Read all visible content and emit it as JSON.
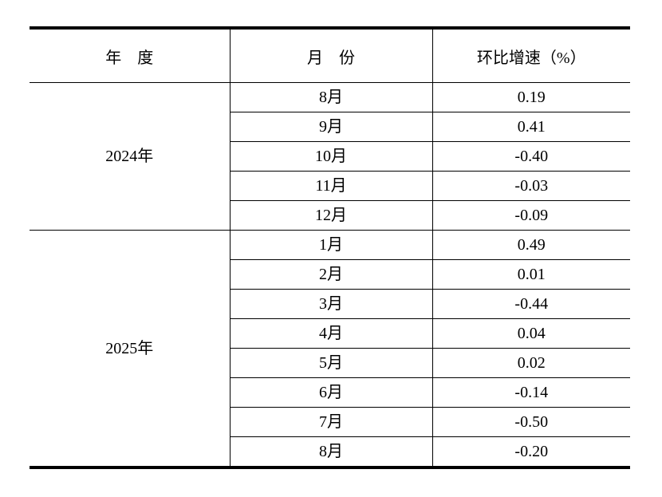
{
  "page": {
    "background_color": "#ffffff",
    "text_color": "#000000",
    "line_color": "#000000"
  },
  "table": {
    "headers": [
      "年　度",
      "月　份",
      "环比增速（%）"
    ],
    "groups": [
      {
        "year": "2024年",
        "rows": [
          {
            "month": "8月",
            "value": "0.19"
          },
          {
            "month": "9月",
            "value": "0.41"
          },
          {
            "month": "10月",
            "value": "-0.40"
          },
          {
            "month": "11月",
            "value": "-0.03"
          },
          {
            "month": "12月",
            "value": "-0.09"
          }
        ]
      },
      {
        "year": "2025年",
        "rows": [
          {
            "month": "1月",
            "value": "0.49"
          },
          {
            "month": "2月",
            "value": "0.01"
          },
          {
            "month": "3月",
            "value": "-0.44"
          },
          {
            "month": "4月",
            "value": "0.04"
          },
          {
            "month": "5月",
            "value": "0.02"
          },
          {
            "month": "6月",
            "value": "-0.14"
          },
          {
            "month": "7月",
            "value": "-0.50"
          },
          {
            "month": "8月",
            "value": "-0.20"
          }
        ]
      }
    ]
  },
  "chart_data": {
    "type": "table",
    "columns": [
      "年　度",
      "月　份",
      "环比增速（%）"
    ],
    "rows": [
      [
        "2024年",
        "8月",
        0.19
      ],
      [
        "2024年",
        "9月",
        0.41
      ],
      [
        "2024年",
        "10月",
        -0.4
      ],
      [
        "2024年",
        "11月",
        -0.03
      ],
      [
        "2024年",
        "12月",
        -0.09
      ],
      [
        "2025年",
        "1月",
        0.49
      ],
      [
        "2025年",
        "2月",
        0.01
      ],
      [
        "2025年",
        "3月",
        -0.44
      ],
      [
        "2025年",
        "4月",
        0.04
      ],
      [
        "2025年",
        "5月",
        0.02
      ],
      [
        "2025年",
        "6月",
        -0.14
      ],
      [
        "2025年",
        "7月",
        -0.5
      ],
      [
        "2025年",
        "8月",
        -0.2
      ]
    ]
  }
}
